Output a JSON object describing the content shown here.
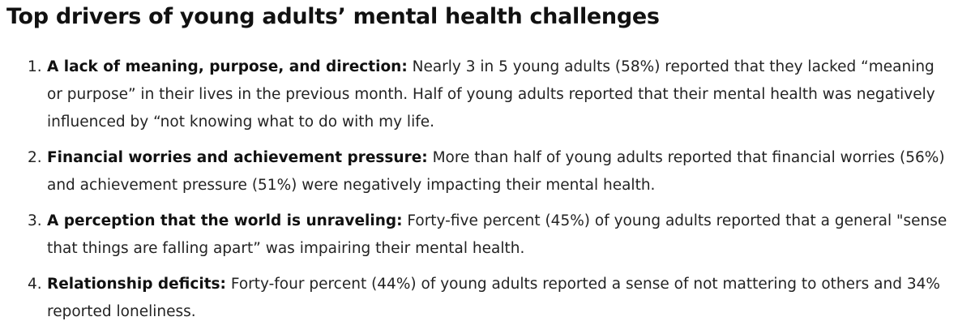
{
  "heading": "Top drivers of young adults’ mental health challenges",
  "items": [
    {
      "number": "1.",
      "lead": "A lack of meaning, purpose, and direction:",
      "text": " Nearly 3 in 5 young adults (58%) reported that they lacked “meaning or purpose” in their lives in the previous month. Half of young adults reported that their mental health was negatively influenced by “not knowing what to do with my life."
    },
    {
      "number": "2.",
      "lead": "Financial worries and achievement pressure:",
      "text": " More than half of young adults reported that financial worries (56%) and achievement pressure (51%) were negatively impacting their mental health."
    },
    {
      "number": "3.",
      "lead": "A perception that the world is unraveling:",
      "text": " Forty-five percent (45%) of young adults reported that a general \"sense that things are falling apart” was impairing their mental health."
    },
    {
      "number": "4.",
      "lead": "Relationship deficits:",
      "text": " Forty-four percent (44%) of young adults reported a sense of not mattering to others and 34% reported loneliness."
    }
  ]
}
